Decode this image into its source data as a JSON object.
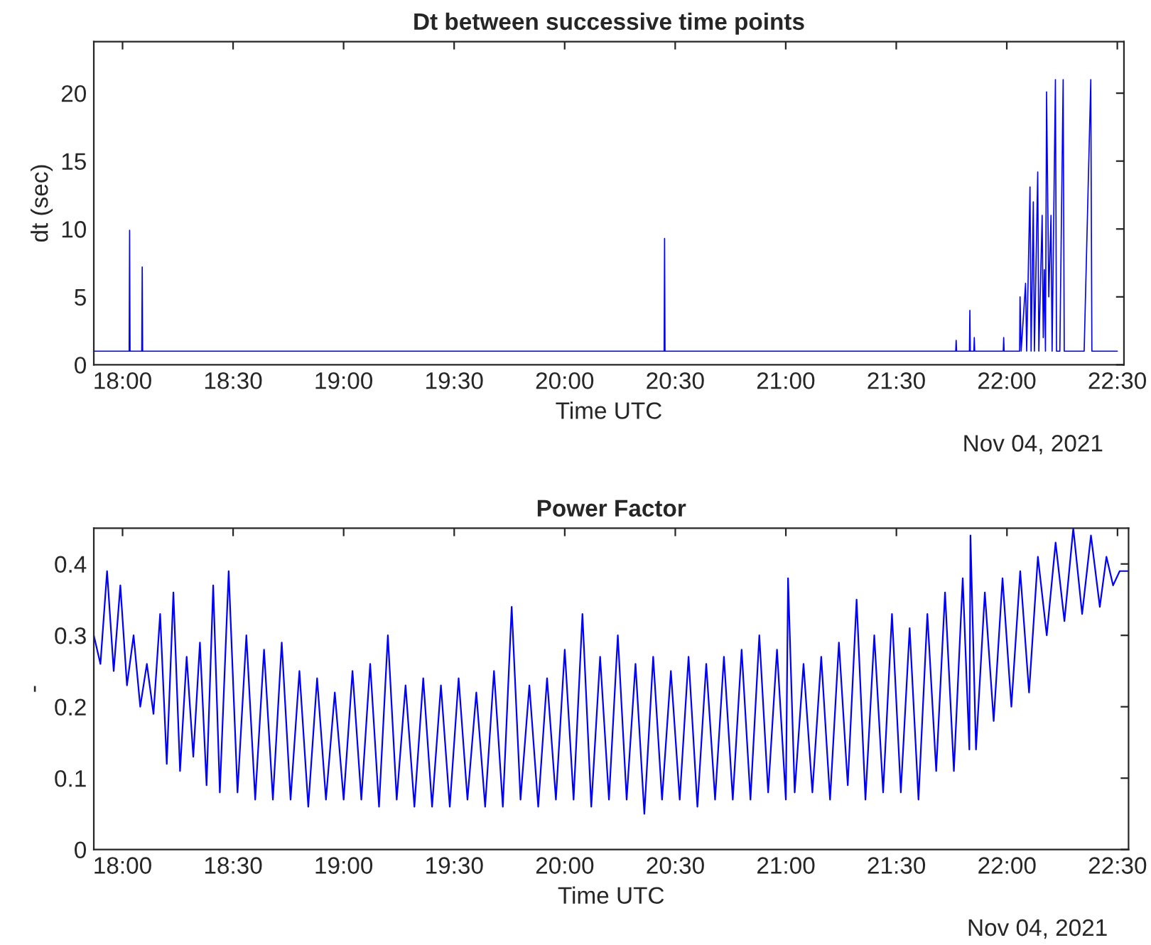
{
  "chart_data": [
    {
      "type": "line",
      "title": "Dt between successive time points",
      "xlabel": "Time UTC",
      "ylabel": "dt (sec)",
      "annotations": [
        "Nov 04, 2021"
      ],
      "xlim": [
        17.87,
        22.53
      ],
      "ylim": [
        0,
        23.8
      ],
      "xticks": [
        {
          "value": 18,
          "label": "18:00"
        },
        {
          "value": 18.5,
          "label": "18:30"
        },
        {
          "value": 19,
          "label": "19:00"
        },
        {
          "value": 19.5,
          "label": "19:30"
        },
        {
          "value": 20,
          "label": "20:00"
        },
        {
          "value": 20.5,
          "label": "20:30"
        },
        {
          "value": 21,
          "label": "21:00"
        },
        {
          "value": 21.5,
          "label": "21:30"
        },
        {
          "value": 22,
          "label": "22:00"
        },
        {
          "value": 22.5,
          "label": "22:30"
        }
      ],
      "yticks": [
        0,
        5,
        10,
        15,
        20
      ],
      "grid": false,
      "legend": false,
      "marker": "none",
      "line_style": "solid",
      "series": [
        {
          "color": "#0000ff",
          "x": [
            17.87,
            18.03,
            18.032,
            18.034,
            18.087,
            18.089,
            18.091,
            20.45,
            20.452,
            20.454,
            21.769,
            21.771,
            21.773,
            21.831,
            21.833,
            21.835,
            21.851,
            21.853,
            21.855,
            21.984,
            21.986,
            21.988,
            22.058,
            22.06,
            22.065,
            22.085,
            22.09,
            22.105,
            22.11,
            22.12,
            22.125,
            22.14,
            22.145,
            22.16,
            22.165,
            22.17,
            22.175,
            22.18,
            22.19,
            22.2,
            22.205,
            22.215,
            22.22,
            22.225,
            22.235,
            22.24,
            22.25,
            22.255,
            22.26,
            22.27,
            22.28,
            22.3,
            22.31,
            22.33,
            22.335,
            22.345,
            22.35,
            22.37,
            22.38,
            22.385,
            22.4,
            22.41,
            22.43,
            22.44,
            22.46,
            22.47,
            22.495,
            22.5
          ],
          "values": [
            1,
            1,
            9.9,
            1,
            1,
            7.2,
            1,
            1,
            9.3,
            1,
            1,
            1.8,
            1,
            1,
            4.0,
            1,
            1,
            2.0,
            1,
            1,
            2.0,
            1,
            1,
            5.0,
            1,
            6.0,
            1,
            13.1,
            1,
            12.0,
            1,
            14.2,
            1,
            11.0,
            2,
            7.0,
            1,
            20.1,
            5.0,
            11,
            1,
            null,
            21.0,
            1,
            null,
            1,
            null,
            21.0,
            1,
            null,
            1,
            null,
            1,
            null,
            1,
            null,
            1,
            null,
            21.0,
            1,
            null,
            1,
            null,
            1,
            null,
            1,
            null,
            1
          ]
        }
      ]
    },
    {
      "type": "line",
      "title": "Power Factor",
      "xlabel": "Time UTC",
      "ylabel": "-",
      "annotations": [
        "Nov 04, 2021"
      ],
      "xlim": [
        17.87,
        22.55
      ],
      "ylim": [
        0,
        0.45
      ],
      "xticks": [
        {
          "value": 18,
          "label": "18:00"
        },
        {
          "value": 18.5,
          "label": "18:30"
        },
        {
          "value": 19,
          "label": "19:00"
        },
        {
          "value": 19.5,
          "label": "19:30"
        },
        {
          "value": 20,
          "label": "20:00"
        },
        {
          "value": 20.5,
          "label": "20:30"
        },
        {
          "value": 21,
          "label": "21:00"
        },
        {
          "value": 21.5,
          "label": "21:30"
        },
        {
          "value": 22,
          "label": "22:00"
        },
        {
          "value": 22.5,
          "label": "22:30"
        }
      ],
      "yticks": [
        0,
        0.1,
        0.2,
        0.3,
        0.4
      ],
      "grid": false,
      "legend": false,
      "marker": "none",
      "line_style": "solid",
      "series": [
        {
          "color": "#0000ff",
          "x": [
            17.87,
            17.9,
            17.93,
            17.96,
            17.99,
            18.02,
            18.05,
            18.08,
            18.11,
            18.14,
            18.17,
            18.2,
            18.23,
            18.26,
            18.29,
            18.32,
            18.35,
            18.38,
            18.41,
            18.44,
            18.48,
            18.52,
            18.56,
            18.6,
            18.64,
            18.68,
            18.72,
            18.76,
            18.8,
            18.84,
            18.88,
            18.92,
            18.96,
            19.0,
            19.04,
            19.08,
            19.12,
            19.16,
            19.2,
            19.24,
            19.28,
            19.32,
            19.36,
            19.4,
            19.44,
            19.48,
            19.52,
            19.56,
            19.6,
            19.64,
            19.68,
            19.72,
            19.76,
            19.8,
            19.84,
            19.88,
            19.92,
            19.96,
            20.0,
            20.04,
            20.08,
            20.12,
            20.16,
            20.2,
            20.24,
            20.28,
            20.32,
            20.36,
            20.4,
            20.44,
            20.48,
            20.52,
            20.56,
            20.6,
            20.64,
            20.68,
            20.72,
            20.76,
            20.8,
            20.84,
            20.88,
            20.92,
            20.96,
            21.0,
            21.01,
            21.04,
            21.08,
            21.12,
            21.16,
            21.2,
            21.24,
            21.28,
            21.32,
            21.36,
            21.4,
            21.44,
            21.48,
            21.52,
            21.56,
            21.6,
            21.64,
            21.68,
            21.72,
            21.76,
            21.8,
            21.83,
            21.835,
            21.86,
            21.9,
            21.94,
            21.98,
            22.02,
            22.06,
            22.1,
            22.14,
            22.18,
            22.22,
            22.26,
            22.3,
            22.34,
            22.38,
            22.42,
            22.45,
            22.48,
            22.51,
            22.55
          ],
          "values": [
            0.3,
            0.26,
            0.39,
            0.25,
            0.37,
            0.23,
            0.3,
            0.2,
            0.26,
            0.19,
            0.33,
            0.12,
            0.36,
            0.11,
            0.27,
            0.13,
            0.29,
            0.09,
            0.37,
            0.08,
            0.39,
            0.08,
            0.3,
            0.07,
            0.28,
            0.07,
            0.29,
            0.07,
            0.25,
            0.06,
            0.24,
            0.07,
            0.22,
            0.07,
            0.25,
            0.07,
            0.26,
            0.06,
            0.3,
            0.07,
            0.23,
            0.06,
            0.24,
            0.06,
            0.23,
            0.06,
            0.24,
            0.07,
            0.22,
            0.06,
            0.25,
            0.06,
            0.34,
            0.07,
            0.23,
            0.06,
            0.24,
            0.07,
            0.28,
            0.07,
            0.33,
            0.06,
            0.27,
            0.07,
            0.3,
            0.07,
            0.26,
            0.05,
            0.27,
            0.07,
            0.25,
            0.07,
            0.27,
            0.06,
            0.26,
            0.07,
            0.27,
            0.07,
            0.28,
            0.07,
            0.3,
            0.08,
            0.28,
            0.07,
            0.38,
            0.08,
            0.26,
            0.08,
            0.27,
            0.07,
            0.29,
            0.09,
            0.35,
            0.07,
            0.3,
            0.08,
            0.33,
            0.08,
            0.31,
            0.07,
            0.33,
            0.11,
            0.36,
            0.11,
            0.38,
            0.14,
            0.44,
            0.14,
            0.36,
            0.18,
            0.38,
            0.2,
            0.39,
            0.22,
            0.41,
            0.3,
            0.43,
            0.32,
            0.45,
            0.33,
            0.44,
            0.34,
            0.41,
            0.37,
            0.39,
            0.39
          ]
        }
      ]
    }
  ]
}
